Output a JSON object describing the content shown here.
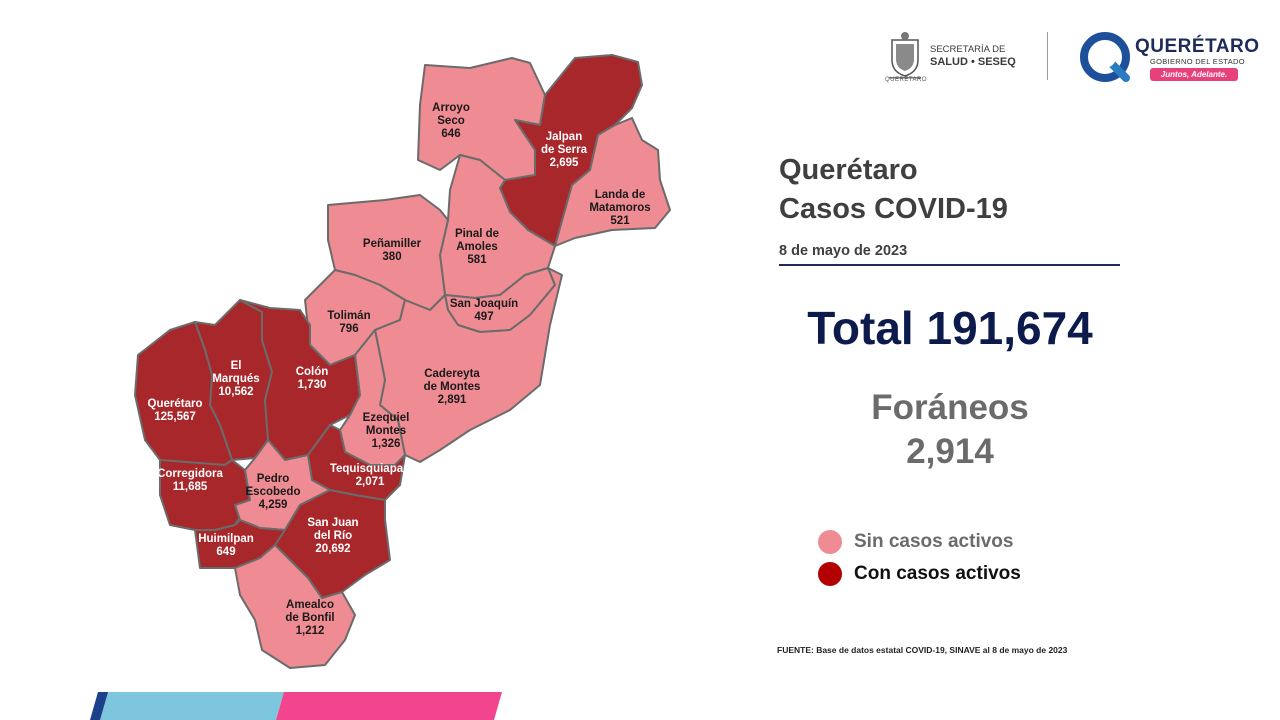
{
  "header": {
    "seseq_line1": "SECRETARÍA DE",
    "seseq_line2": "SALUD • SESEQ",
    "seseq_emblem_caption": "QUERÉTARO",
    "qro_name": "QUERÉTARO",
    "qro_subtitle": "GOBIERNO DEL ESTADO",
    "qro_tagline": "Juntos, Adelante."
  },
  "title_line1": "Querétaro",
  "title_line2": "Casos COVID-19",
  "date": "8 de mayo de 2023",
  "total_text": "Total 191,674",
  "foraneos_label": "Foráneos",
  "foraneos_value": "2,914",
  "legend": {
    "inactive_label": "Sin casos activos",
    "active_label": "Con casos activos"
  },
  "source": "FUENTE: Base de datos estatal  COVID-19,  SINAVE  al 8 de mayo de 2023",
  "colors": {
    "inactive": "#ef8b92",
    "active": "#a8272b",
    "border": "#6b6b6b",
    "legend_inactive": "#ef8b92",
    "legend_active": "#b30000",
    "total_text": "#0d1b4c",
    "foraneos_text": "#6b6b6b",
    "stripe_dark": "#1e3f8a",
    "stripe_light": "#7ec6dd",
    "stripe_pink": "#f2458e"
  },
  "municipios": [
    {
      "id": "arroyo-seco",
      "name_lines": [
        "Arroyo",
        "Seco"
      ],
      "cases": "646",
      "active": false
    },
    {
      "id": "jalpan",
      "name_lines": [
        "Jalpan",
        "de Serra"
      ],
      "cases": "2,695",
      "active": true
    },
    {
      "id": "landa",
      "name_lines": [
        "Landa de",
        "Matamoros"
      ],
      "cases": "521",
      "active": false
    },
    {
      "id": "pinal",
      "name_lines": [
        "Pinal de",
        "Amoles"
      ],
      "cases": "581",
      "active": false
    },
    {
      "id": "penamiller",
      "name_lines": [
        "Peñamiller"
      ],
      "cases": "380",
      "active": false
    },
    {
      "id": "san-joaquin",
      "name_lines": [
        "San Joaquín"
      ],
      "cases": "497",
      "active": false
    },
    {
      "id": "toliman",
      "name_lines": [
        "Tolimán"
      ],
      "cases": "796",
      "active": false
    },
    {
      "id": "cadereyta",
      "name_lines": [
        "Cadereyta",
        "de Montes"
      ],
      "cases": "2,891",
      "active": false
    },
    {
      "id": "el-marques",
      "name_lines": [
        "El",
        "Marqués"
      ],
      "cases": "10,562",
      "active": true
    },
    {
      "id": "colon",
      "name_lines": [
        "Colón"
      ],
      "cases": "1,730",
      "active": true
    },
    {
      "id": "queretaro",
      "name_lines": [
        "Querétaro"
      ],
      "cases": "125,567",
      "active": true
    },
    {
      "id": "ezequiel",
      "name_lines": [
        "Ezequiel",
        "Montes"
      ],
      "cases": "1,326",
      "active": false
    },
    {
      "id": "tequisquiapan",
      "name_lines": [
        "Tequisquiapan"
      ],
      "cases": "2,071",
      "active": true
    },
    {
      "id": "corregidora",
      "name_lines": [
        "Corregidora"
      ],
      "cases": "11,685",
      "active": true
    },
    {
      "id": "pedro-escobedo",
      "name_lines": [
        "Pedro",
        "Escobedo"
      ],
      "cases": "4,259",
      "active": false
    },
    {
      "id": "san-juan",
      "name_lines": [
        "San Juan",
        "del Río"
      ],
      "cases": "20,692",
      "active": true
    },
    {
      "id": "huimilpan",
      "name_lines": [
        "Huimilpan"
      ],
      "cases": "649",
      "active": true
    },
    {
      "id": "amealco",
      "name_lines": [
        "Amealco",
        "de Bonfil"
      ],
      "cases": "1,212",
      "active": false
    }
  ]
}
